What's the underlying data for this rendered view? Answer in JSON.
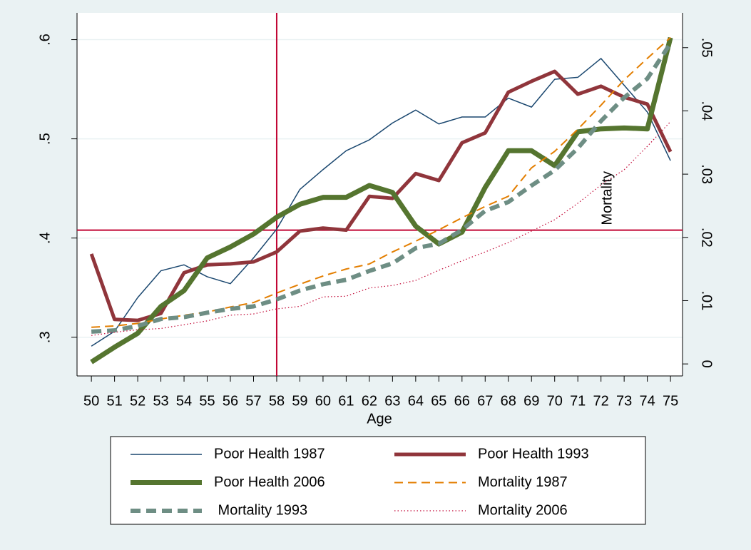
{
  "chart_data": {
    "type": "line",
    "x_label": "Age",
    "x": [
      50,
      51,
      52,
      53,
      54,
      55,
      56,
      57,
      58,
      59,
      60,
      61,
      62,
      63,
      64,
      65,
      66,
      67,
      68,
      69,
      70,
      71,
      72,
      73,
      74,
      75
    ],
    "xlim": [
      49.38,
      75.52
    ],
    "xticks": [
      50,
      51,
      52,
      53,
      54,
      55,
      56,
      57,
      58,
      59,
      60,
      61,
      62,
      63,
      64,
      65,
      66,
      67,
      68,
      69,
      70,
      71,
      72,
      73,
      74,
      75
    ],
    "ylim": [
      0.261,
      0.627
    ],
    "yticks": [
      {
        "value": 0.3,
        "label": ".3"
      },
      {
        "value": 0.4,
        "label": ".4"
      },
      {
        "value": 0.5,
        "label": ".5"
      },
      {
        "value": 0.6,
        "label": ".6"
      }
    ],
    "y2lim": [
      -0.0019,
      0.0555
    ],
    "y2ticks": [
      0,
      {
        "value": 0.01,
        "label": ".01"
      },
      {
        "value": 0.02,
        "label": ".02"
      },
      {
        "value": 0.03,
        "label": ".03"
      },
      {
        "value": 0.04,
        "label": ".04"
      },
      {
        "value": 0.05,
        "label": ".05"
      }
    ],
    "grid": true,
    "legend": "bottom",
    "reference_lines": {
      "x": 58,
      "y": 0.408,
      "color": "#c10534"
    },
    "annotation": {
      "text": "Mortality",
      "x": 72.3,
      "y": 0.0262,
      "axis": "y2"
    },
    "series": [
      {
        "name": "Poor Health 1987",
        "color": "#1a476f",
        "style": "thin",
        "values": [
          0.291,
          0.306,
          0.34,
          0.367,
          0.373,
          0.361,
          0.354,
          0.38,
          0.409,
          0.449,
          0.469,
          0.488,
          0.499,
          0.516,
          0.529,
          0.515,
          0.522,
          0.522,
          0.541,
          0.532,
          0.56,
          0.562,
          0.581,
          0.554,
          0.527,
          0.478
        ]
      },
      {
        "name": "Poor Health 1993",
        "color": "#90353b",
        "style": "thick",
        "values": [
          0.384,
          0.318,
          0.317,
          0.324,
          0.365,
          0.373,
          0.374,
          0.376,
          0.386,
          0.407,
          0.41,
          0.408,
          0.442,
          0.44,
          0.465,
          0.458,
          0.496,
          0.506,
          0.547,
          0.558,
          0.568,
          0.545,
          0.553,
          0.542,
          0.535,
          0.487
        ]
      },
      {
        "name": "Poor Health 2006",
        "color": "#55752f",
        "style": "heavy",
        "values": [
          0.275,
          0.29,
          0.304,
          0.331,
          0.347,
          0.38,
          0.391,
          0.404,
          0.421,
          0.434,
          0.441,
          0.441,
          0.453,
          0.446,
          0.412,
          0.394,
          0.406,
          0.451,
          0.488,
          0.488,
          0.473,
          0.507,
          0.51,
          0.511,
          0.51,
          0.602
        ]
      },
      {
        "name": "Mortality 1987",
        "color": "#e37e00",
        "style": "dash",
        "axis": "y2",
        "values": [
          0.0058,
          0.006,
          0.0064,
          0.0071,
          0.0077,
          0.0082,
          0.009,
          0.0097,
          0.0112,
          0.0126,
          0.0139,
          0.015,
          0.0158,
          0.0177,
          0.0194,
          0.0212,
          0.0231,
          0.0249,
          0.0265,
          0.031,
          0.0336,
          0.0371,
          0.0409,
          0.0449,
          0.0483,
          0.0516
        ]
      },
      {
        "name": " Mortality 1993",
        "color": "#6e8e84",
        "style": "heavy-dash",
        "axis": "y2",
        "values": [
          0.0051,
          0.0053,
          0.006,
          0.0071,
          0.0074,
          0.0081,
          0.0087,
          0.0091,
          0.0102,
          0.0116,
          0.0126,
          0.0133,
          0.0147,
          0.0159,
          0.0183,
          0.019,
          0.0212,
          0.0242,
          0.0256,
          0.0282,
          0.0306,
          0.0341,
          0.0384,
          0.0421,
          0.0451,
          0.0507
        ]
      },
      {
        "name": "Mortality 2006",
        "color": "#c10534",
        "style": "dot",
        "axis": "y2",
        "values": [
          0.0045,
          0.005,
          0.0054,
          0.0056,
          0.0062,
          0.0068,
          0.0077,
          0.0079,
          0.0087,
          0.0091,
          0.0106,
          0.0107,
          0.012,
          0.0124,
          0.0132,
          0.0148,
          0.0163,
          0.0177,
          0.0192,
          0.021,
          0.0228,
          0.0254,
          0.0283,
          0.0307,
          0.0344,
          0.0383
        ]
      }
    ]
  }
}
